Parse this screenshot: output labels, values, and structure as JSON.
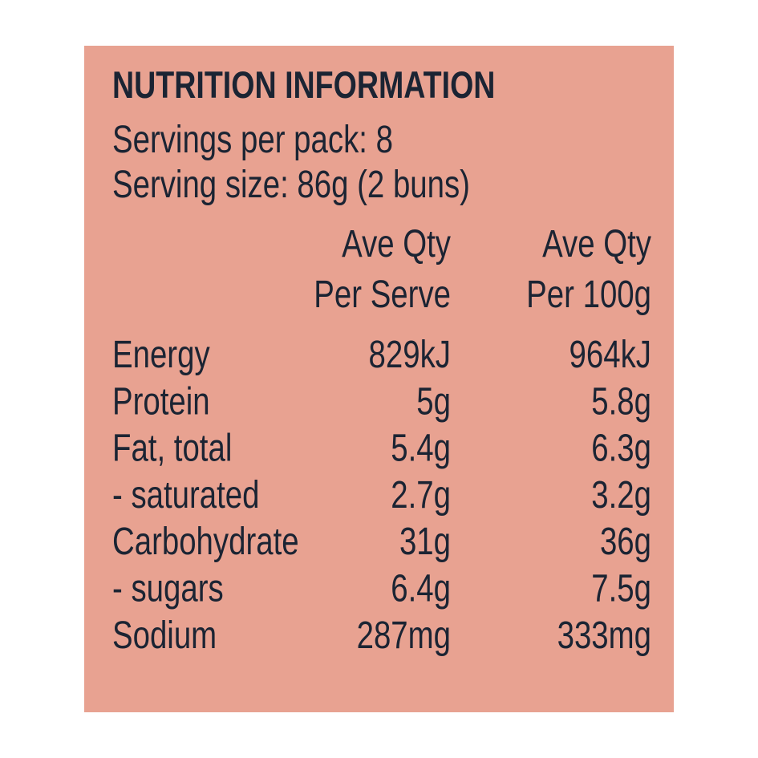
{
  "header": {
    "title": "NUTRITION INFORMATION",
    "servings_per_pack": "Servings per pack: 8",
    "serving_size": "Serving size: 86g (2 buns)"
  },
  "column_headers": [
    [
      "Ave Qty",
      "Per Serve"
    ],
    [
      "Ave Qty",
      "Per 100g"
    ]
  ],
  "rows": [
    [
      "Energy",
      "829kJ",
      "964kJ"
    ],
    [
      "Protein",
      "5g",
      "5.8g"
    ],
    [
      "Fat, total",
      "5.4g",
      "6.3g"
    ],
    [
      "- saturated",
      "2.7g",
      "3.2g"
    ],
    [
      "Carbohydrate",
      "31g",
      "36g"
    ],
    [
      "- sugars",
      "6.4g",
      "7.5g"
    ],
    [
      "Sodium",
      "287mg",
      "333mg"
    ]
  ]
}
